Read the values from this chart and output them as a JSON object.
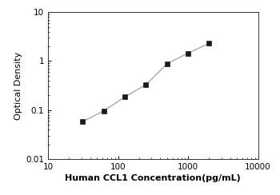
{
  "x_data": [
    31.25,
    62.5,
    125,
    250,
    500,
    1000,
    2000
  ],
  "y_data": [
    0.058,
    0.097,
    0.185,
    0.33,
    0.88,
    1.45,
    2.3
  ],
  "xlabel": "Human CCL1 Concentration(pg/mL)",
  "ylabel": "Optical Density",
  "xlim": [
    10,
    10000
  ],
  "ylim": [
    0.01,
    10
  ],
  "line_color": "#aaaaaa",
  "marker_color": "#1a1a1a",
  "marker_style": "s",
  "marker_size": 4,
  "line_width": 1.0,
  "xlabel_fontsize": 8,
  "ylabel_fontsize": 8,
  "tick_fontsize": 7.5,
  "xlabel_fontweight": "bold",
  "x_ticks": [
    10,
    100,
    1000,
    10000
  ],
  "x_tick_labels": [
    "10",
    "100",
    "1000",
    "10000"
  ],
  "y_ticks": [
    0.01,
    0.1,
    1,
    10
  ],
  "y_tick_labels": [
    "0.01",
    "0.1",
    "1",
    "10"
  ]
}
